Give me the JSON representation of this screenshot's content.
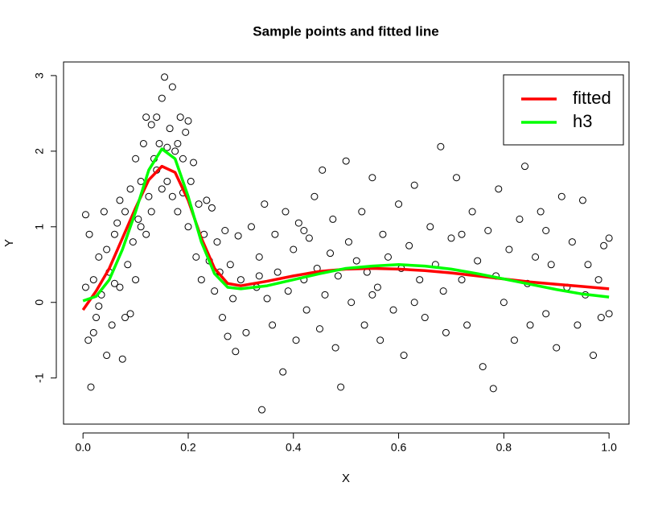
{
  "chart_data": {
    "type": "scatter",
    "title": "Sample points and fitted line",
    "x_label": "X",
    "y_label": "Y",
    "xlim": [
      -0.037,
      1.038
    ],
    "ylim": [
      -1.61,
      3.18
    ],
    "xticks": [
      {
        "value": 0,
        "label": "0.0"
      },
      {
        "value": 0.2,
        "label": "0.2"
      },
      {
        "value": 0.4,
        "label": "0.4"
      },
      {
        "value": 0.6,
        "label": "0.6"
      },
      {
        "value": 0.8,
        "label": "0.8"
      },
      {
        "value": 1,
        "label": "1.0"
      }
    ],
    "yticks": [
      -1,
      0,
      1,
      2,
      3
    ],
    "legend": "top-right",
    "points": {
      "x": [
        0.005,
        0.01,
        0.015,
        0.02,
        0.025,
        0.03,
        0.035,
        0.04,
        0.045,
        0.05,
        0.055,
        0.06,
        0.065,
        0.07,
        0.075,
        0.08,
        0.085,
        0.09,
        0.095,
        0.1,
        0.005,
        0.012,
        0.02,
        0.03,
        0.045,
        0.06,
        0.07,
        0.08,
        0.09,
        0.1,
        0.105,
        0.11,
        0.115,
        0.12,
        0.125,
        0.13,
        0.135,
        0.14,
        0.145,
        0.15,
        0.155,
        0.16,
        0.165,
        0.17,
        0.175,
        0.18,
        0.185,
        0.19,
        0.195,
        0.2,
        0.205,
        0.21,
        0.215,
        0.22,
        0.225,
        0.23,
        0.235,
        0.24,
        0.245,
        0.25,
        0.255,
        0.26,
        0.265,
        0.27,
        0.275,
        0.28,
        0.285,
        0.29,
        0.295,
        0.3,
        0.11,
        0.13,
        0.15,
        0.17,
        0.12,
        0.16,
        0.18,
        0.19,
        0.14,
        0.2,
        0.31,
        0.32,
        0.33,
        0.335,
        0.34,
        0.345,
        0.35,
        0.36,
        0.365,
        0.37,
        0.38,
        0.385,
        0.39,
        0.4,
        0.405,
        0.41,
        0.42,
        0.425,
        0.43,
        0.44,
        0.445,
        0.45,
        0.455,
        0.46,
        0.47,
        0.475,
        0.48,
        0.485,
        0.49,
        0.5,
        0.505,
        0.51,
        0.52,
        0.53,
        0.535,
        0.54,
        0.55,
        0.56,
        0.565,
        0.57,
        0.58,
        0.59,
        0.6,
        0.605,
        0.61,
        0.62,
        0.63,
        0.64,
        0.65,
        0.66,
        0.67,
        0.68,
        0.685,
        0.69,
        0.7,
        0.71,
        0.72,
        0.73,
        0.74,
        0.75,
        0.76,
        0.77,
        0.78,
        0.785,
        0.79,
        0.8,
        0.81,
        0.82,
        0.83,
        0.84,
        0.845,
        0.85,
        0.86,
        0.87,
        0.88,
        0.89,
        0.9,
        0.91,
        0.92,
        0.93,
        0.94,
        0.95,
        0.955,
        0.96,
        0.97,
        0.98,
        0.985,
        0.99,
        1.0,
        1.0,
        0.335,
        0.55,
        0.72,
        0.88,
        0.63,
        0.42
      ],
      "y": [
        1.16,
        -0.5,
        -1.12,
        0.3,
        -0.2,
        0.6,
        0.1,
        1.2,
        -0.7,
        0.4,
        -0.3,
        0.9,
        1.05,
        0.2,
        -0.75,
        1.2,
        0.5,
        1.5,
        0.8,
        1.9,
        0.2,
        0.9,
        -0.4,
        -0.05,
        0.7,
        0.25,
        1.35,
        -0.2,
        -0.15,
        0.3,
        1.1,
        1.6,
        2.1,
        2.45,
        1.4,
        2.35,
        1.9,
        2.45,
        2.1,
        2.7,
        2.98,
        1.6,
        2.3,
        2.85,
        2.0,
        1.2,
        2.45,
        1.9,
        2.25,
        1.0,
        1.6,
        1.85,
        0.6,
        1.3,
        0.3,
        0.9,
        1.35,
        0.55,
        1.25,
        0.15,
        0.8,
        0.4,
        -0.2,
        0.95,
        -0.45,
        0.5,
        0.05,
        -0.65,
        0.88,
        0.3,
        1.0,
        1.2,
        1.5,
        1.4,
        0.9,
        2.05,
        2.1,
        1.45,
        1.75,
        2.4,
        -0.4,
        1.0,
        0.2,
        0.6,
        -1.42,
        1.3,
        0.05,
        -0.3,
        0.9,
        0.4,
        -0.92,
        1.2,
        0.15,
        0.7,
        -0.5,
        1.05,
        0.3,
        -0.1,
        0.85,
        1.4,
        0.45,
        -0.35,
        1.75,
        0.1,
        0.65,
        1.1,
        -0.6,
        0.35,
        -1.12,
        1.87,
        0.8,
        0.0,
        0.55,
        1.2,
        -0.3,
        0.4,
        1.65,
        0.2,
        -0.5,
        0.9,
        0.6,
        -0.1,
        1.3,
        0.45,
        -0.7,
        0.75,
        1.55,
        0.3,
        -0.2,
        1.0,
        0.5,
        2.06,
        0.15,
        -0.4,
        0.85,
        1.65,
        0.3,
        -0.3,
        1.2,
        0.55,
        -0.85,
        0.95,
        -1.14,
        0.35,
        1.5,
        0.0,
        0.7,
        -0.5,
        1.1,
        1.8,
        0.25,
        -0.3,
        0.6,
        1.2,
        -0.15,
        0.5,
        -0.6,
        1.4,
        0.2,
        0.8,
        -0.3,
        1.35,
        0.1,
        0.5,
        -0.7,
        0.3,
        -0.2,
        0.75,
        0.85,
        -0.15,
        0.35,
        0.1,
        0.9,
        0.95,
        0.0,
        0.95
      ]
    },
    "series_x": [
      0,
      0.025,
      0.05,
      0.075,
      0.1,
      0.125,
      0.15,
      0.175,
      0.2,
      0.225,
      0.25,
      0.275,
      0.3,
      0.35,
      0.4,
      0.45,
      0.5,
      0.55,
      0.6,
      0.65,
      0.7,
      0.75,
      0.8,
      0.85,
      0.9,
      0.95,
      1.0
    ],
    "series": [
      {
        "name": "fitted",
        "color": "#ff0000",
        "values": [
          -0.1,
          0.15,
          0.45,
          0.85,
          1.25,
          1.62,
          1.8,
          1.72,
          1.35,
          0.85,
          0.45,
          0.25,
          0.22,
          0.28,
          0.35,
          0.41,
          0.44,
          0.45,
          0.44,
          0.42,
          0.39,
          0.35,
          0.31,
          0.27,
          0.24,
          0.21,
          0.18
        ]
      },
      {
        "name": "h3",
        "color": "#00ff00",
        "values": [
          0.02,
          0.08,
          0.3,
          0.7,
          1.2,
          1.75,
          2.03,
          1.9,
          1.4,
          0.8,
          0.38,
          0.2,
          0.18,
          0.22,
          0.3,
          0.38,
          0.45,
          0.48,
          0.5,
          0.48,
          0.44,
          0.38,
          0.31,
          0.24,
          0.17,
          0.11,
          0.07
        ]
      }
    ]
  }
}
